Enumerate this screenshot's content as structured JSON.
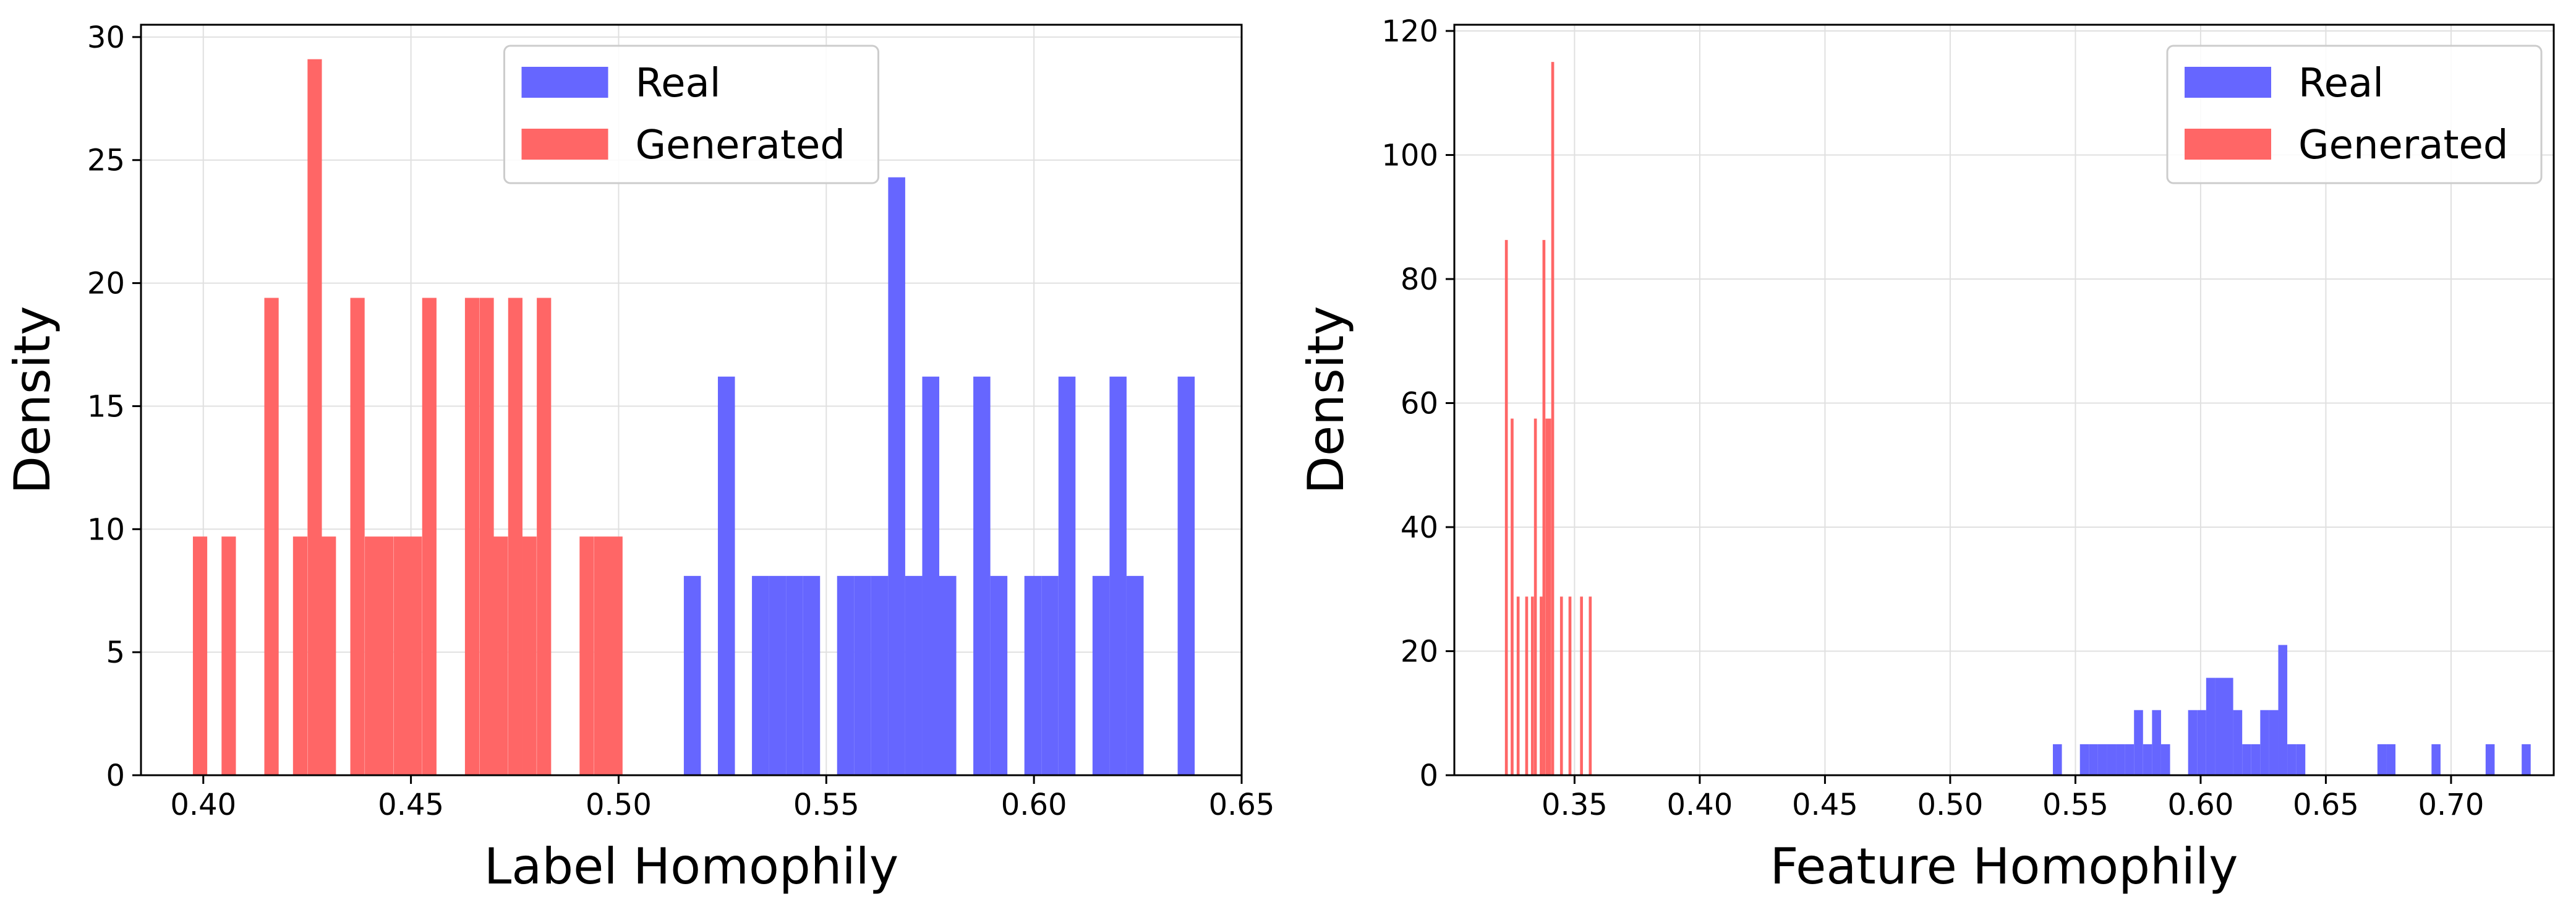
{
  "chart_data": [
    {
      "type": "bar",
      "subtype": "histogram",
      "xlabel": "Label Homophily",
      "ylabel": "Density",
      "xlim": [
        0.385,
        0.65
      ],
      "ylim": [
        0,
        30.5
      ],
      "xticks": [
        0.4,
        0.45,
        0.5,
        0.55,
        0.6,
        0.65
      ],
      "xtick_labels": [
        "0.40",
        "0.45",
        "0.50",
        "0.55",
        "0.60",
        "0.65"
      ],
      "yticks": [
        0,
        5,
        10,
        15,
        20,
        25,
        30
      ],
      "ytick_labels": [
        "0",
        "5",
        "10",
        "15",
        "20",
        "25",
        "30"
      ],
      "grid": true,
      "legend_position": "upper center",
      "series": [
        {
          "name": "Real",
          "color": "#6666ff",
          "bin_width": 0.0041,
          "bins": [
            {
              "x": 0.5157,
              "density": 8.1
            },
            {
              "x": 0.5239,
              "density": 16.2
            },
            {
              "x": 0.5321,
              "density": 8.1
            },
            {
              "x": 0.5362,
              "density": 8.1
            },
            {
              "x": 0.5403,
              "density": 8.1
            },
            {
              "x": 0.5444,
              "density": 8.1
            },
            {
              "x": 0.5526,
              "density": 8.1
            },
            {
              "x": 0.5567,
              "density": 8.1
            },
            {
              "x": 0.5608,
              "density": 8.1
            },
            {
              "x": 0.5649,
              "density": 24.3
            },
            {
              "x": 0.569,
              "density": 8.1
            },
            {
              "x": 0.5731,
              "density": 16.2
            },
            {
              "x": 0.5772,
              "density": 8.1
            },
            {
              "x": 0.5854,
              "density": 16.2
            },
            {
              "x": 0.5895,
              "density": 8.1
            },
            {
              "x": 0.5977,
              "density": 8.1
            },
            {
              "x": 0.6018,
              "density": 8.1
            },
            {
              "x": 0.6059,
              "density": 16.2
            },
            {
              "x": 0.6141,
              "density": 8.1
            },
            {
              "x": 0.6182,
              "density": 16.2
            },
            {
              "x": 0.6223,
              "density": 8.1
            },
            {
              "x": 0.6346,
              "density": 16.2
            }
          ]
        },
        {
          "name": "Generated",
          "color": "#ff6666",
          "bin_width": 0.00345,
          "bins": [
            {
              "x": 0.3975,
              "density": 9.7
            },
            {
              "x": 0.4044,
              "density": 9.7
            },
            {
              "x": 0.4147,
              "density": 19.4
            },
            {
              "x": 0.4216,
              "density": 9.7
            },
            {
              "x": 0.4251,
              "density": 29.1
            },
            {
              "x": 0.4285,
              "density": 9.7
            },
            {
              "x": 0.4354,
              "density": 19.4
            },
            {
              "x": 0.4389,
              "density": 9.7
            },
            {
              "x": 0.4423,
              "density": 9.7
            },
            {
              "x": 0.4458,
              "density": 9.7
            },
            {
              "x": 0.4492,
              "density": 9.7
            },
            {
              "x": 0.4527,
              "density": 19.4
            },
            {
              "x": 0.463,
              "density": 19.4
            },
            {
              "x": 0.4665,
              "density": 19.4
            },
            {
              "x": 0.4699,
              "density": 9.7
            },
            {
              "x": 0.4734,
              "density": 19.4
            },
            {
              "x": 0.4768,
              "density": 9.7
            },
            {
              "x": 0.4803,
              "density": 19.4
            },
            {
              "x": 0.4906,
              "density": 9.7
            },
            {
              "x": 0.4941,
              "density": 9.7
            },
            {
              "x": 0.4975,
              "density": 9.7
            }
          ]
        }
      ]
    },
    {
      "type": "bar",
      "subtype": "histogram",
      "xlabel": "Feature Homophily",
      "ylabel": "Density",
      "xlim": [
        0.302,
        0.741
      ],
      "ylim": [
        0,
        121
      ],
      "xticks": [
        0.35,
        0.4,
        0.45,
        0.5,
        0.55,
        0.6,
        0.65,
        0.7
      ],
      "xtick_labels": [
        "0.35",
        "0.40",
        "0.45",
        "0.50",
        "0.55",
        "0.60",
        "0.65",
        "0.70"
      ],
      "yticks": [
        0,
        20,
        40,
        60,
        80,
        100,
        120
      ],
      "ytick_labels": [
        "0",
        "20",
        "40",
        "60",
        "80",
        "100",
        "120"
      ],
      "grid": true,
      "legend_position": "upper right",
      "series": [
        {
          "name": "Real",
          "color": "#6666ff",
          "bin_width": 0.0036,
          "bins": [
            {
              "x": 0.541,
              "density": 5
            },
            {
              "x": 0.5518,
              "density": 5
            },
            {
              "x": 0.5554,
              "density": 5
            },
            {
              "x": 0.559,
              "density": 5
            },
            {
              "x": 0.5626,
              "density": 5
            },
            {
              "x": 0.5662,
              "density": 5
            },
            {
              "x": 0.5698,
              "density": 5
            },
            {
              "x": 0.5734,
              "density": 10.5
            },
            {
              "x": 0.577,
              "density": 5
            },
            {
              "x": 0.5806,
              "density": 10.5
            },
            {
              "x": 0.5842,
              "density": 5
            },
            {
              "x": 0.595,
              "density": 10.5
            },
            {
              "x": 0.5986,
              "density": 10.5
            },
            {
              "x": 0.6022,
              "density": 15.7
            },
            {
              "x": 0.6058,
              "density": 15.7
            },
            {
              "x": 0.6094,
              "density": 15.7
            },
            {
              "x": 0.613,
              "density": 10.5
            },
            {
              "x": 0.6166,
              "density": 5
            },
            {
              "x": 0.6202,
              "density": 5
            },
            {
              "x": 0.6238,
              "density": 10.5
            },
            {
              "x": 0.6274,
              "density": 10.5
            },
            {
              "x": 0.631,
              "density": 21
            },
            {
              "x": 0.6346,
              "density": 5
            },
            {
              "x": 0.6382,
              "density": 5
            },
            {
              "x": 0.6706,
              "density": 5
            },
            {
              "x": 0.6742,
              "density": 5
            },
            {
              "x": 0.6922,
              "density": 5
            },
            {
              "x": 0.7138,
              "density": 5
            },
            {
              "x": 0.7282,
              "density": 5
            }
          ]
        },
        {
          "name": "Generated",
          "color": "#ff6666",
          "bin_width": 0.00115,
          "bins": [
            {
              "x": 0.3222,
              "density": 86.3
            },
            {
              "x": 0.3245,
              "density": 57.5
            },
            {
              "x": 0.3269,
              "density": 28.8
            },
            {
              "x": 0.3303,
              "density": 28.8
            },
            {
              "x": 0.3326,
              "density": 28.8
            },
            {
              "x": 0.3338,
              "density": 57.5
            },
            {
              "x": 0.3361,
              "density": 28.8
            },
            {
              "x": 0.3372,
              "density": 86.3
            },
            {
              "x": 0.3384,
              "density": 57.5
            },
            {
              "x": 0.3395,
              "density": 57.5
            },
            {
              "x": 0.3407,
              "density": 115
            },
            {
              "x": 0.3442,
              "density": 28.8
            },
            {
              "x": 0.3476,
              "density": 28.8
            },
            {
              "x": 0.3522,
              "density": 28.8
            },
            {
              "x": 0.3557,
              "density": 28.8
            }
          ]
        }
      ]
    }
  ]
}
